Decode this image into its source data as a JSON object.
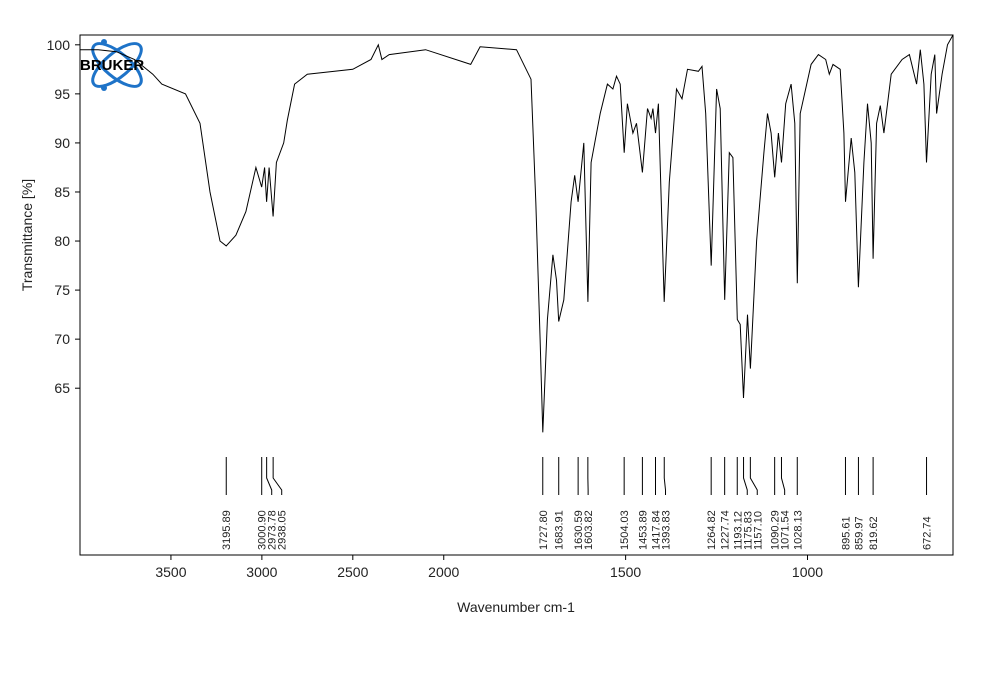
{
  "chart_data": {
    "type": "line",
    "logo": "BRUKER",
    "xlabel": "Wavenumber cm-1",
    "ylabel": "Transmittance [%]",
    "color": "#000000",
    "xlim": [
      4000,
      600
    ],
    "x_scale_change": 2000,
    "xticks": [
      3500,
      3000,
      2500,
      2000,
      1500,
      1000
    ],
    "ylim": [
      48,
      101
    ],
    "yticks": [
      65,
      70,
      75,
      80,
      85,
      90,
      95,
      100
    ],
    "x": [
      4000,
      3900,
      3800,
      3700,
      3600,
      3550,
      3420,
      3340,
      3285,
      3230,
      3195.89,
      3143,
      3088,
      3033,
      3000.9,
      2985,
      2973.78,
      2960,
      2938.05,
      2920,
      2880,
      2860,
      2820,
      2750,
      2500,
      2400,
      2360,
      2340,
      2300,
      2100,
      1950,
      1926,
      1900,
      1800,
      1760,
      1747,
      1735,
      1727.8,
      1715,
      1700,
      1690,
      1683.91,
      1670,
      1650,
      1640,
      1630.59,
      1615,
      1603.82,
      1595,
      1570,
      1550,
      1535,
      1525,
      1515,
      1504.03,
      1495,
      1480,
      1470,
      1453.89,
      1440,
      1430,
      1425,
      1417.84,
      1410,
      1393.83,
      1380,
      1360,
      1345,
      1330,
      1300,
      1290,
      1280,
      1264.82,
      1250,
      1240,
      1227.74,
      1215,
      1205,
      1193.12,
      1185,
      1175.83,
      1165,
      1157.1,
      1140,
      1120,
      1110,
      1100,
      1090.29,
      1080,
      1071.54,
      1060,
      1045,
      1035,
      1028.13,
      1020,
      990,
      970,
      950,
      940,
      930,
      910,
      900,
      895.61,
      880,
      870,
      859.97,
      845,
      835,
      825,
      819.62,
      810,
      800,
      790,
      770,
      740,
      720,
      700,
      690,
      680,
      672.74,
      660,
      650,
      645,
      630,
      615,
      600
    ],
    "values": [
      99.5,
      99.5,
      99.3,
      98.5,
      97,
      96,
      95,
      92,
      85,
      80,
      79.5,
      80.6,
      83,
      87.5,
      85.5,
      87.5,
      84,
      87.5,
      82.5,
      88,
      90,
      92.3,
      96,
      97,
      97.5,
      98.5,
      100,
      98.5,
      99,
      99.5,
      98.3,
      98,
      99.8,
      99.5,
      96.5,
      84,
      70,
      60.5,
      72,
      78.6,
      76,
      71.8,
      74,
      84,
      86.7,
      84,
      90,
      73.8,
      88,
      93,
      96,
      95.5,
      96.8,
      96,
      89,
      94,
      91,
      92,
      87,
      93.5,
      92.5,
      93.5,
      91,
      94,
      73.8,
      86,
      95.5,
      94.5,
      97.5,
      97.3,
      97.8,
      93,
      77.5,
      95.5,
      93.5,
      74,
      89,
      88.5,
      72,
      71.5,
      64,
      72.5,
      67,
      80,
      89,
      93,
      91,
      86.5,
      91,
      88,
      94,
      96,
      92,
      75.7,
      93,
      98,
      99,
      98.5,
      97,
      98,
      97.5,
      91,
      84,
      90.5,
      87,
      75.3,
      88,
      94,
      90,
      78.2,
      92,
      93.8,
      91,
      97,
      98.5,
      99,
      96,
      99.5,
      96,
      88,
      97,
      99,
      93,
      97,
      100,
      101
    ],
    "peaks": {
      "values": [
        3195.89,
        3000.9,
        2973.78,
        2938.05,
        1727.8,
        1683.91,
        1630.59,
        1603.82,
        1504.03,
        1453.89,
        1417.84,
        1393.83,
        1264.82,
        1227.74,
        1193.12,
        1175.83,
        1157.1,
        1090.29,
        1071.54,
        1028.13,
        895.61,
        859.97,
        819.62,
        672.74
      ],
      "value_labels": [
        "3195.89",
        "3000.90",
        "2973.78",
        "2938.05",
        "1727.80",
        "1683.91",
        "1630.59",
        "1603.82",
        "1504.03",
        "1453.89",
        "1417.84",
        "1393.83",
        "1264.82",
        "1227.74",
        "1193.12",
        "1175.83",
        "1157.10",
        "1090.29",
        "1071.54",
        "1028.13",
        "895.61",
        "859.97",
        "819.62",
        "672.74"
      ]
    }
  }
}
